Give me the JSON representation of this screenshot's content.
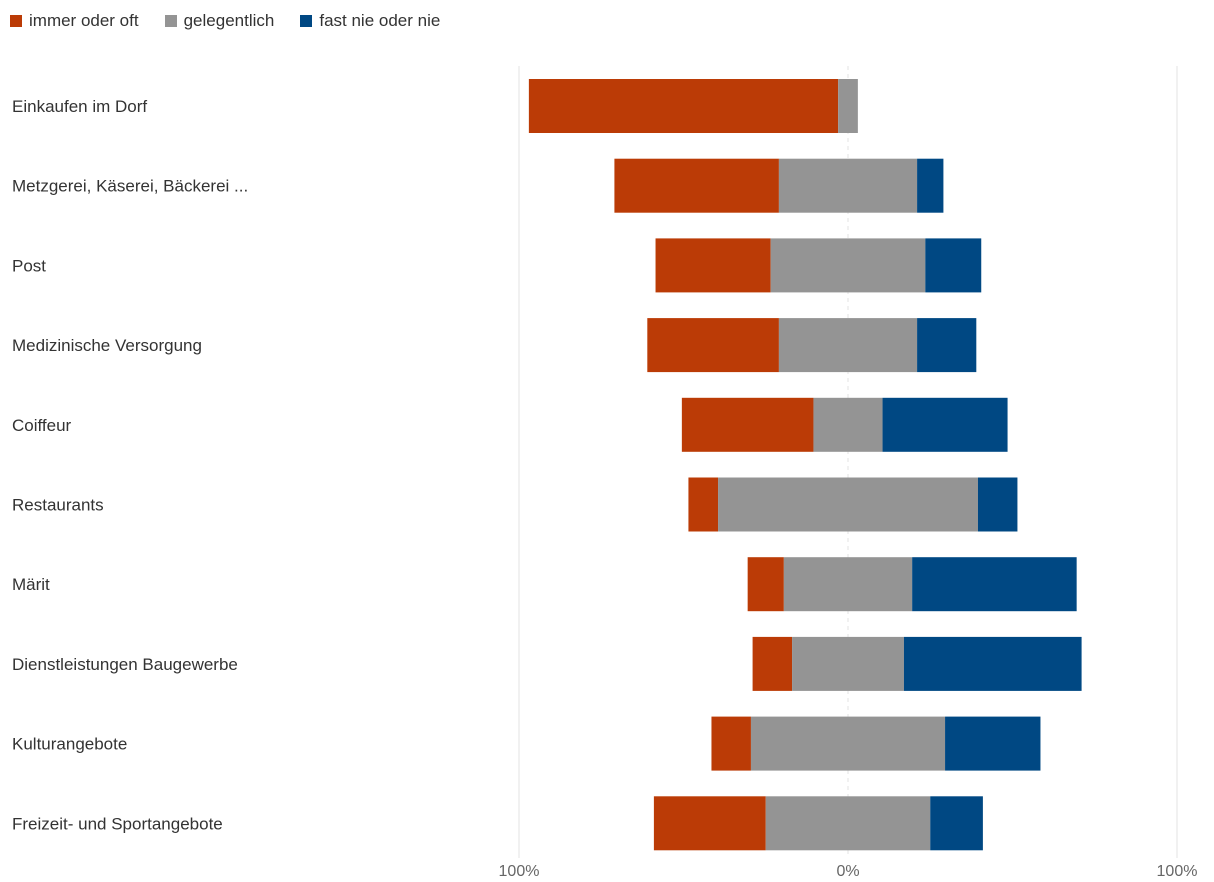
{
  "chart_data": {
    "type": "bar",
    "orientation": "horizontal",
    "stacked": "diverging",
    "categories": [
      "Einkaufen im Dorf",
      "Metzgerei, Käserei, Bäckerei ...",
      "Post",
      "Medizinische Versorgung",
      "Coiffeur",
      "Restaurants",
      "Märit",
      "Dienstleistungen Baugewerbe",
      "Kulturangebote",
      "Freizeit- und Sportangebote"
    ],
    "series": [
      {
        "name": "immer oder oft",
        "color": "#bb3b06",
        "values": [
          94,
          50,
          35,
          40,
          40,
          9,
          11,
          12,
          12,
          34
        ]
      },
      {
        "name": "gelegentlich",
        "color": "#949494",
        "values": [
          6,
          42,
          47,
          42,
          21,
          79,
          39,
          34,
          59,
          50
        ]
      },
      {
        "name": "fast nie oder nie",
        "color": "#004883",
        "values": [
          0,
          8,
          17,
          18,
          38,
          12,
          50,
          54,
          29,
          16
        ]
      }
    ],
    "xlim": [
      -100,
      100
    ],
    "x_ticks": [
      "100%",
      "0%",
      "100%"
    ],
    "legend_position": "top-left",
    "grid": true
  }
}
